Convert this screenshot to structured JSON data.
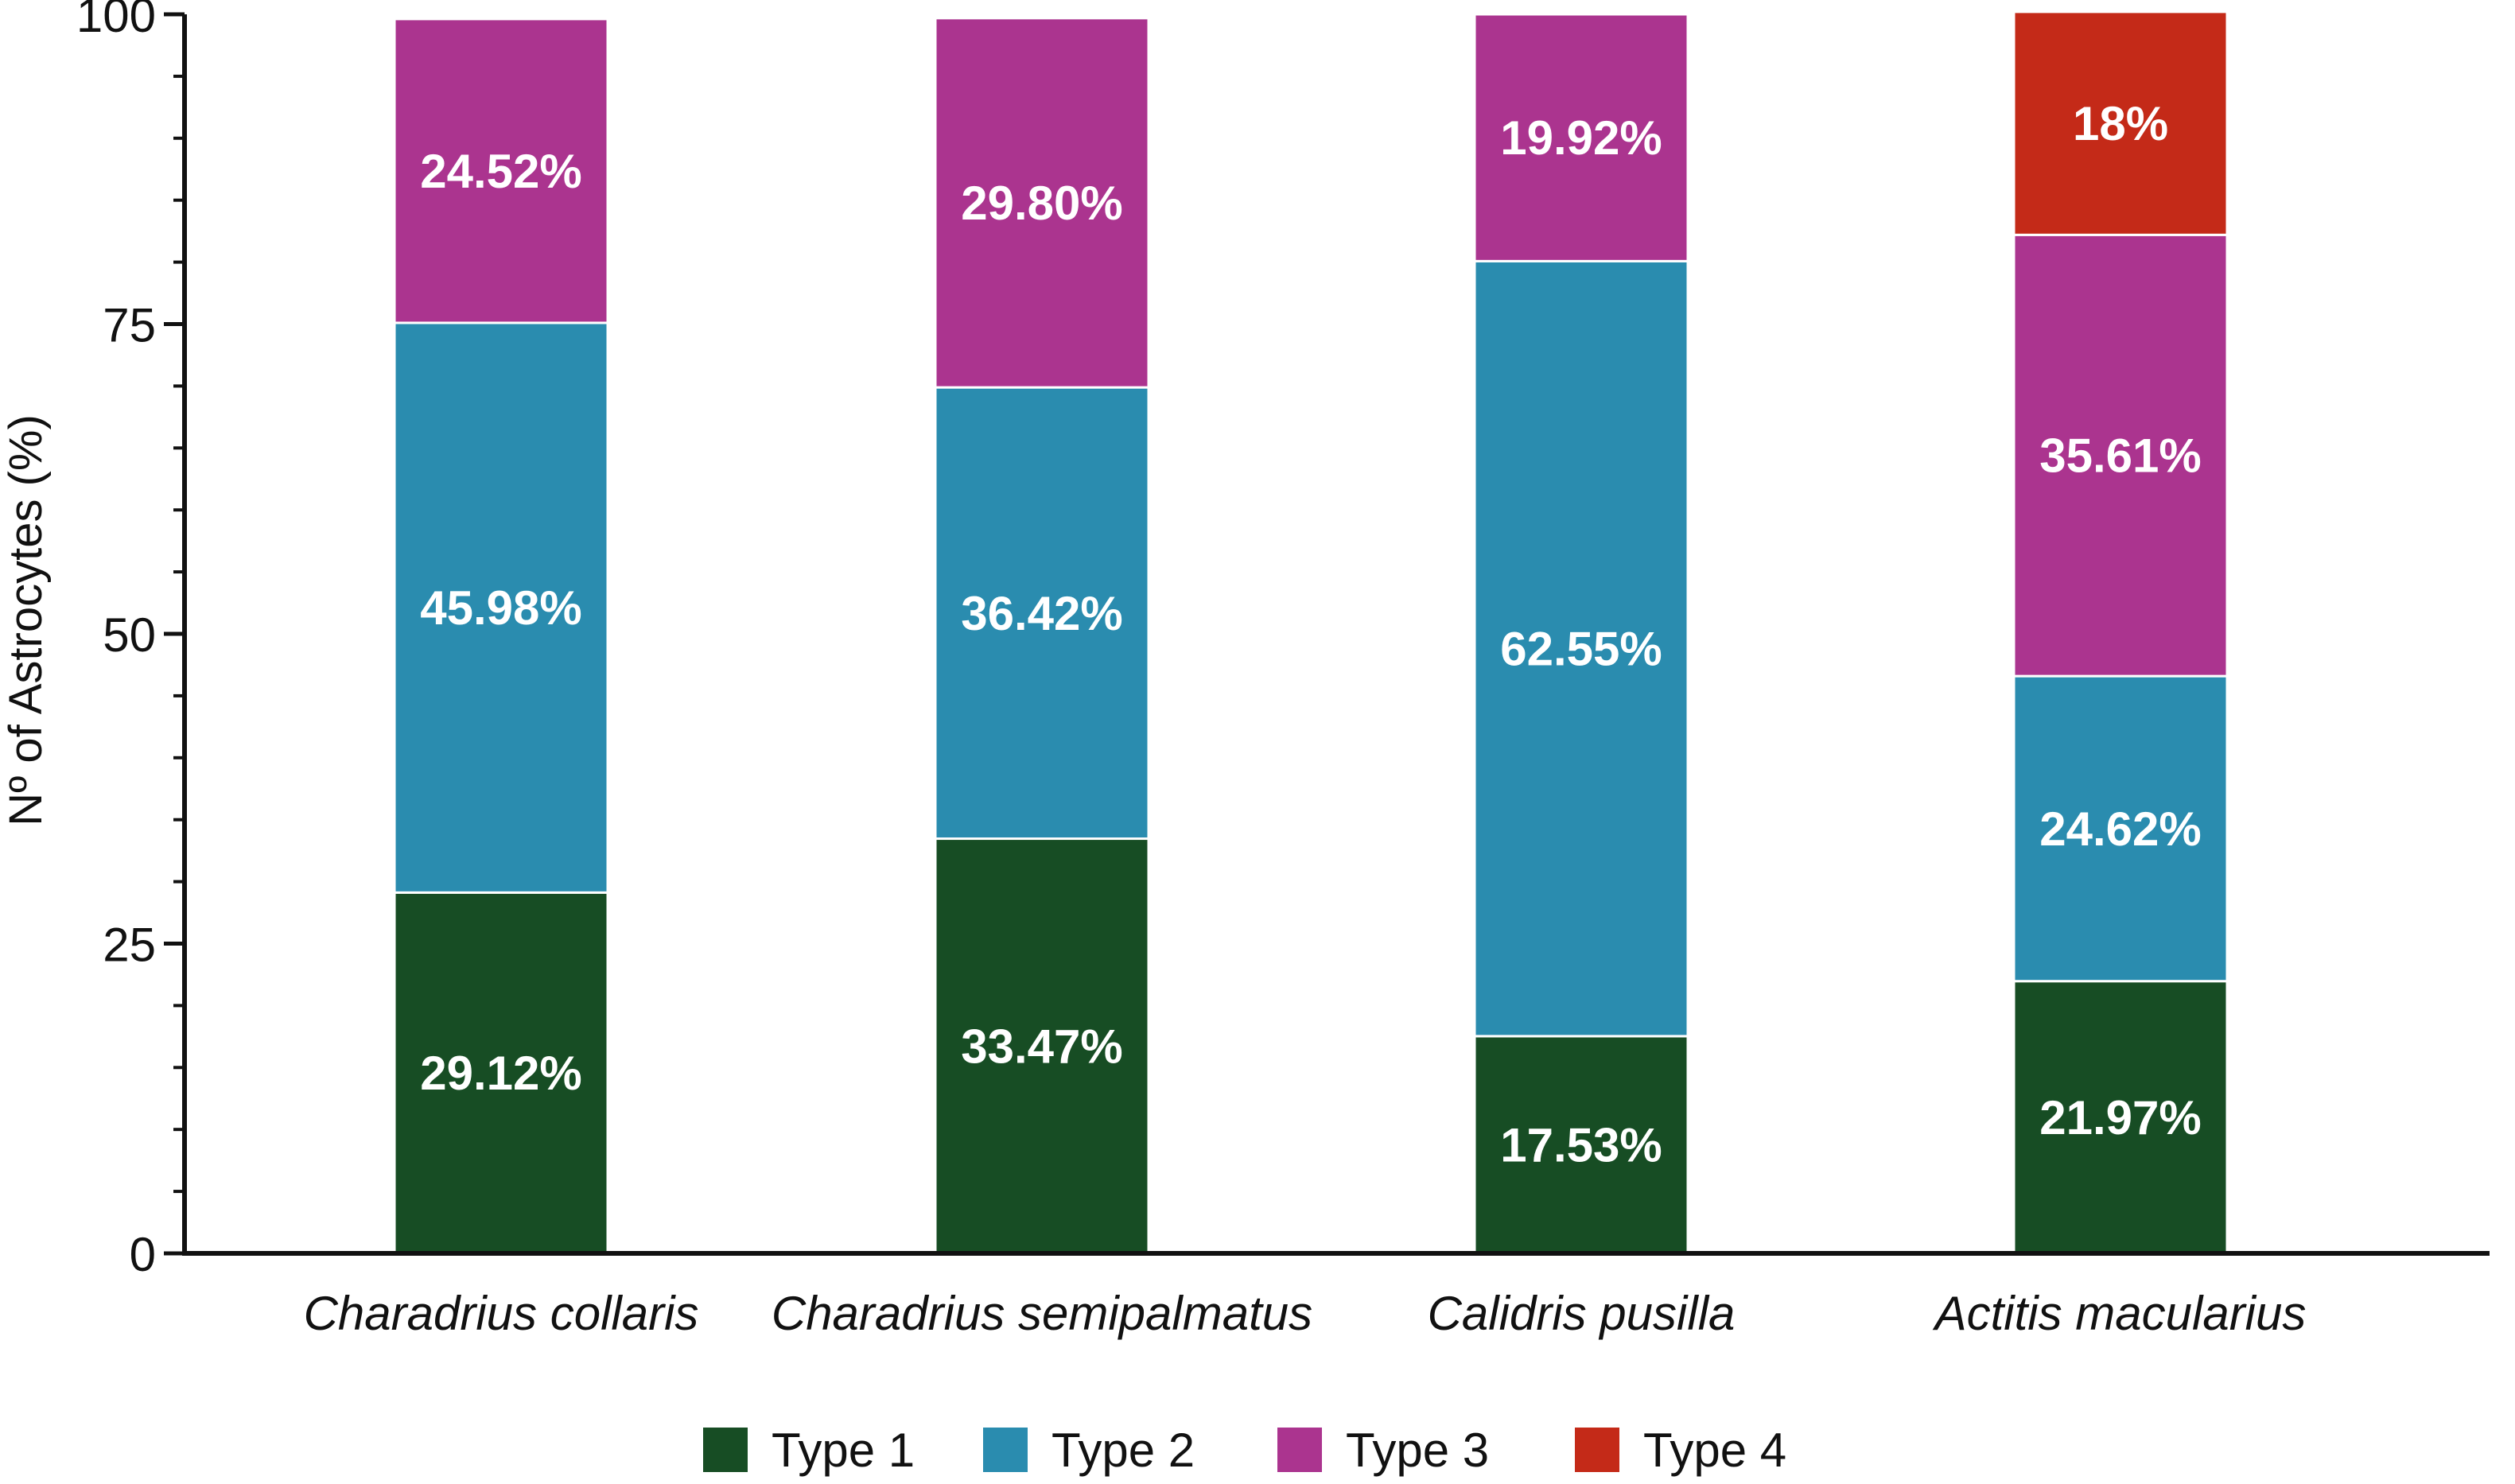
{
  "chart_data": {
    "type": "bar",
    "stacked": true,
    "title": "",
    "xlabel": "",
    "ylabel": "Nº of Astrocytes (%)",
    "ylim": [
      0,
      100
    ],
    "yticks": [
      "0",
      "25",
      "50",
      "75",
      "100"
    ],
    "grid": false,
    "legend_position": "bottom",
    "categories": [
      "Charadrius collaris",
      "Charadrius semipalmatus",
      "Calidris pusilla",
      "Actitis macularius"
    ],
    "series": [
      {
        "name": "Type 1",
        "color": "#174d24",
        "values": [
          29.12,
          33.47,
          17.53,
          21.97
        ],
        "labels": [
          "29.12%",
          "33.47%",
          "17.53%",
          "21.97%"
        ]
      },
      {
        "name": "Type 2",
        "color": "#2a8caf",
        "values": [
          45.98,
          36.42,
          62.55,
          24.62
        ],
        "labels": [
          "45.98%",
          "36.42%",
          "62.55%",
          "24.62%"
        ]
      },
      {
        "name": "Type 3",
        "color": "#ab348f",
        "values": [
          24.52,
          29.8,
          19.92,
          35.61
        ],
        "labels": [
          "24.52%",
          "29.80%",
          "19.92%",
          "35.61%"
        ]
      },
      {
        "name": "Type 4",
        "color": "#c42a18",
        "values": [
          0,
          0,
          0,
          18
        ],
        "labels": [
          "",
          "",
          "",
          "18%"
        ]
      }
    ]
  }
}
